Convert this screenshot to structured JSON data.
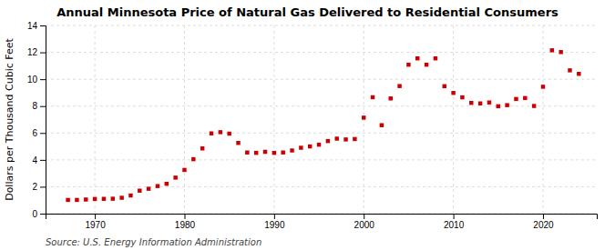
{
  "chart_data": {
    "type": "scatter",
    "title": "Annual Minnesota Price of Natural Gas Delivered to Residential Consumers",
    "ylabel": "Dollars per Thousand Cubic Feet",
    "source": "Source: U.S. Energy Information Administration",
    "color": "#cc0000",
    "marker": "square",
    "grid": true,
    "xlim": [
      1964.5,
      2026
    ],
    "xticks": [
      1970,
      1980,
      1990,
      2000,
      2010,
      2020
    ],
    "ylim": [
      0,
      14
    ],
    "yticks": [
      0,
      2,
      4,
      6,
      8,
      10,
      12,
      14
    ],
    "x": [
      1967,
      1968,
      1969,
      1970,
      1971,
      1972,
      1973,
      1974,
      1975,
      1976,
      1977,
      1978,
      1979,
      1980,
      1981,
      1982,
      1983,
      1984,
      1985,
      1986,
      1987,
      1988,
      1989,
      1990,
      1991,
      1992,
      1993,
      1994,
      1995,
      1996,
      1997,
      1998,
      1999,
      2000,
      2001,
      2002,
      2003,
      2004,
      2005,
      2006,
      2007,
      2008,
      2009,
      2010,
      2011,
      2012,
      2013,
      2014,
      2015,
      2016,
      2017,
      2018,
      2019,
      2020,
      2021,
      2022,
      2023,
      2024
    ],
    "values": [
      1.02,
      1.02,
      1.05,
      1.09,
      1.1,
      1.11,
      1.18,
      1.35,
      1.71,
      1.85,
      2.05,
      2.22,
      2.68,
      3.25,
      4.05,
      4.85,
      5.97,
      6.06,
      5.95,
      5.26,
      4.55,
      4.52,
      4.6,
      4.52,
      4.55,
      4.7,
      4.9,
      5.0,
      5.13,
      5.4,
      5.58,
      5.52,
      5.55,
      7.14,
      8.66,
      6.58,
      8.57,
      9.49,
      11.08,
      11.55,
      11.08,
      11.55,
      9.48,
      8.98,
      8.65,
      8.24,
      8.2,
      8.27,
      7.99,
      8.07,
      8.53,
      8.6,
      8.01,
      9.44,
      12.15,
      12.02,
      10.66,
      10.4
    ]
  }
}
